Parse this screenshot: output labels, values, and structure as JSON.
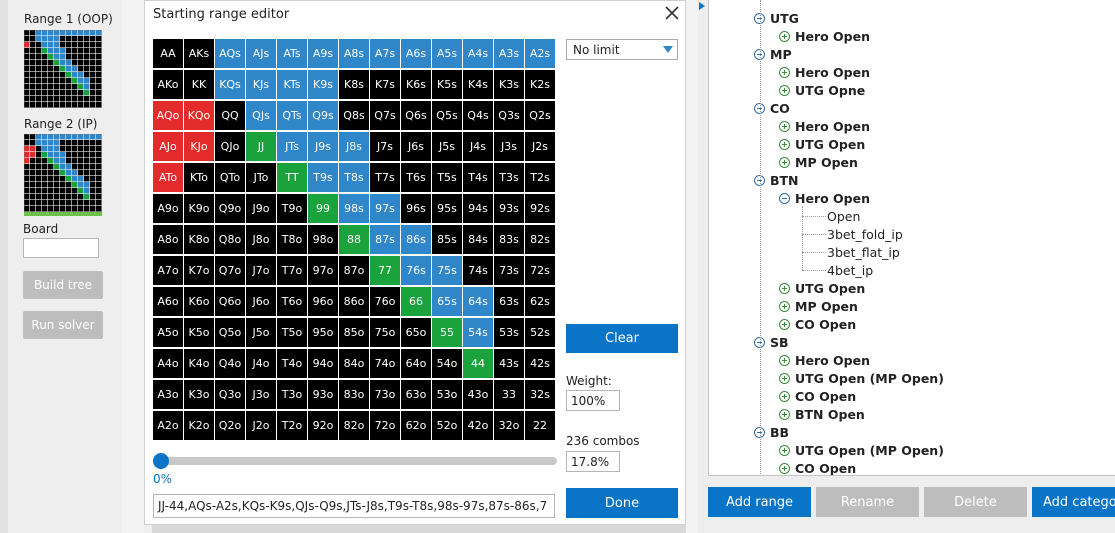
{
  "left_panel": {
    "range1_label": "Range 1 (OOP)",
    "range2_label": "Range 2 (IP)",
    "board_label": "Board",
    "board_value": "",
    "build_tree_label": "Build tree",
    "run_solver_label": "Run solver"
  },
  "dialog": {
    "title": "Starting range editor",
    "close_icon": "close-icon",
    "limit_selected": "No limit",
    "clear_label": "Clear",
    "weight_label": "Weight:",
    "weight_value": "100%",
    "combos_label": "236 combos",
    "combos_pct": "17.8%",
    "slider_value": "0%",
    "done_label": "Done",
    "range_text": "JJ-44,AQs-A2s,KQs-K9s,QJs-Q9s,JTs-J8s,T9s-T8s,98s-97s,87s-86s,7",
    "colors": {
      "black": "#000000",
      "blue": "#2f86c8",
      "green": "#1aa33c",
      "red": "#e32b2b"
    },
    "grid": [
      [
        "AA",
        "AKs",
        "AQs",
        "AJs",
        "ATs",
        "A9s",
        "A8s",
        "A7s",
        "A6s",
        "A5s",
        "A4s",
        "A3s",
        "A2s"
      ],
      [
        "AKo",
        "KK",
        "KQs",
        "KJs",
        "KTs",
        "K9s",
        "K8s",
        "K7s",
        "K6s",
        "K5s",
        "K4s",
        "K3s",
        "K2s"
      ],
      [
        "AQo",
        "KQo",
        "QQ",
        "QJs",
        "QTs",
        "Q9s",
        "Q8s",
        "Q7s",
        "Q6s",
        "Q5s",
        "Q4s",
        "Q3s",
        "Q2s"
      ],
      [
        "AJo",
        "KJo",
        "QJo",
        "JJ",
        "JTs",
        "J9s",
        "J8s",
        "J7s",
        "J6s",
        "J5s",
        "J4s",
        "J3s",
        "J2s"
      ],
      [
        "ATo",
        "KTo",
        "QTo",
        "JTo",
        "TT",
        "T9s",
        "T8s",
        "T7s",
        "T6s",
        "T5s",
        "T4s",
        "T3s",
        "T2s"
      ],
      [
        "A9o",
        "K9o",
        "Q9o",
        "J9o",
        "T9o",
        "99",
        "98s",
        "97s",
        "96s",
        "95s",
        "94s",
        "93s",
        "92s"
      ],
      [
        "A8o",
        "K8o",
        "Q8o",
        "J8o",
        "T8o",
        "98o",
        "88",
        "87s",
        "86s",
        "85s",
        "84s",
        "83s",
        "82s"
      ],
      [
        "A7o",
        "K7o",
        "Q7o",
        "J7o",
        "T7o",
        "97o",
        "87o",
        "77",
        "76s",
        "75s",
        "74s",
        "73s",
        "72s"
      ],
      [
        "A6o",
        "K6o",
        "Q6o",
        "J6o",
        "T6o",
        "96o",
        "86o",
        "76o",
        "66",
        "65s",
        "64s",
        "63s",
        "62s"
      ],
      [
        "A5o",
        "K5o",
        "Q5o",
        "J5o",
        "T5o",
        "95o",
        "85o",
        "75o",
        "65o",
        "55",
        "54s",
        "53s",
        "52s"
      ],
      [
        "A4o",
        "K4o",
        "Q4o",
        "J4o",
        "T4o",
        "94o",
        "84o",
        "74o",
        "64o",
        "54o",
        "44",
        "43s",
        "42s"
      ],
      [
        "A3o",
        "K3o",
        "Q3o",
        "J3o",
        "T3o",
        "93o",
        "83o",
        "73o",
        "63o",
        "53o",
        "43o",
        "33",
        "32s"
      ],
      [
        "A2o",
        "K2o",
        "Q2o",
        "J2o",
        "T2o",
        "92o",
        "82o",
        "72o",
        "62o",
        "52o",
        "42o",
        "32o",
        "22"
      ]
    ],
    "grid_colors": [
      "kkbbbbbbbbbbb",
      "kkbbbbkkkkkkk",
      "rrkbbbkkkkkkk",
      "rrkgbbbkkkkkk",
      "rkkkgbbkkkkkk",
      "kkkkkgbbkkkkk",
      "kkkkkkgbbkkkk",
      "kkkkkkkgbbkkk",
      "kkkkkkkkgbbkk",
      "kkkkkkkkkgbkk",
      "kkkkkkkkkkgkk",
      "kkkkkkkkkkkkk",
      "kkkkkkkkkkkkk"
    ]
  },
  "tree": {
    "nodes": [
      {
        "label": "UTG",
        "depth": 0,
        "toggle": "minus",
        "bold": true
      },
      {
        "label": "Hero Open",
        "depth": 1,
        "toggle": "plus",
        "bold": true
      },
      {
        "label": "MP",
        "depth": 0,
        "toggle": "minus",
        "bold": true
      },
      {
        "label": "Hero Open",
        "depth": 1,
        "toggle": "plus",
        "bold": true
      },
      {
        "label": "UTG Opne",
        "depth": 1,
        "toggle": "plus",
        "bold": true
      },
      {
        "label": "CO",
        "depth": 0,
        "toggle": "minus",
        "bold": true
      },
      {
        "label": "Hero Open",
        "depth": 1,
        "toggle": "plus",
        "bold": true
      },
      {
        "label": "UTG Open",
        "depth": 1,
        "toggle": "plus",
        "bold": true
      },
      {
        "label": "MP Open",
        "depth": 1,
        "toggle": "plus",
        "bold": true
      },
      {
        "label": "BTN",
        "depth": 0,
        "toggle": "minus",
        "bold": true
      },
      {
        "label": "Hero Open",
        "depth": 1,
        "toggle": "minus",
        "bold": true
      },
      {
        "label": "Open",
        "depth": 2,
        "toggle": "none",
        "bold": false
      },
      {
        "label": "3bet_fold_ip",
        "depth": 2,
        "toggle": "none",
        "bold": false
      },
      {
        "label": "3bet_flat_ip",
        "depth": 2,
        "toggle": "none",
        "bold": false
      },
      {
        "label": "4bet_ip",
        "depth": 2,
        "toggle": "none",
        "bold": false
      },
      {
        "label": "UTG Open",
        "depth": 1,
        "toggle": "plus",
        "bold": true
      },
      {
        "label": "MP Open",
        "depth": 1,
        "toggle": "plus",
        "bold": true
      },
      {
        "label": "CO Open",
        "depth": 1,
        "toggle": "plus",
        "bold": true
      },
      {
        "label": "SB",
        "depth": 0,
        "toggle": "minus",
        "bold": true
      },
      {
        "label": "Hero Open",
        "depth": 1,
        "toggle": "plus",
        "bold": true
      },
      {
        "label": "UTG Open (MP Open)",
        "depth": 1,
        "toggle": "plus",
        "bold": true
      },
      {
        "label": "CO Open",
        "depth": 1,
        "toggle": "plus",
        "bold": true
      },
      {
        "label": "BTN Open",
        "depth": 1,
        "toggle": "plus",
        "bold": true
      },
      {
        "label": "BB",
        "depth": 0,
        "toggle": "minus",
        "bold": true
      },
      {
        "label": "UTG Open (MP Open)",
        "depth": 1,
        "toggle": "plus",
        "bold": true
      },
      {
        "label": "CO Open",
        "depth": 1,
        "toggle": "plus",
        "bold": true
      }
    ],
    "add_range_label": "Add range",
    "rename_label": "Rename",
    "delete_label": "Delete",
    "add_category_label": "Add catego"
  }
}
